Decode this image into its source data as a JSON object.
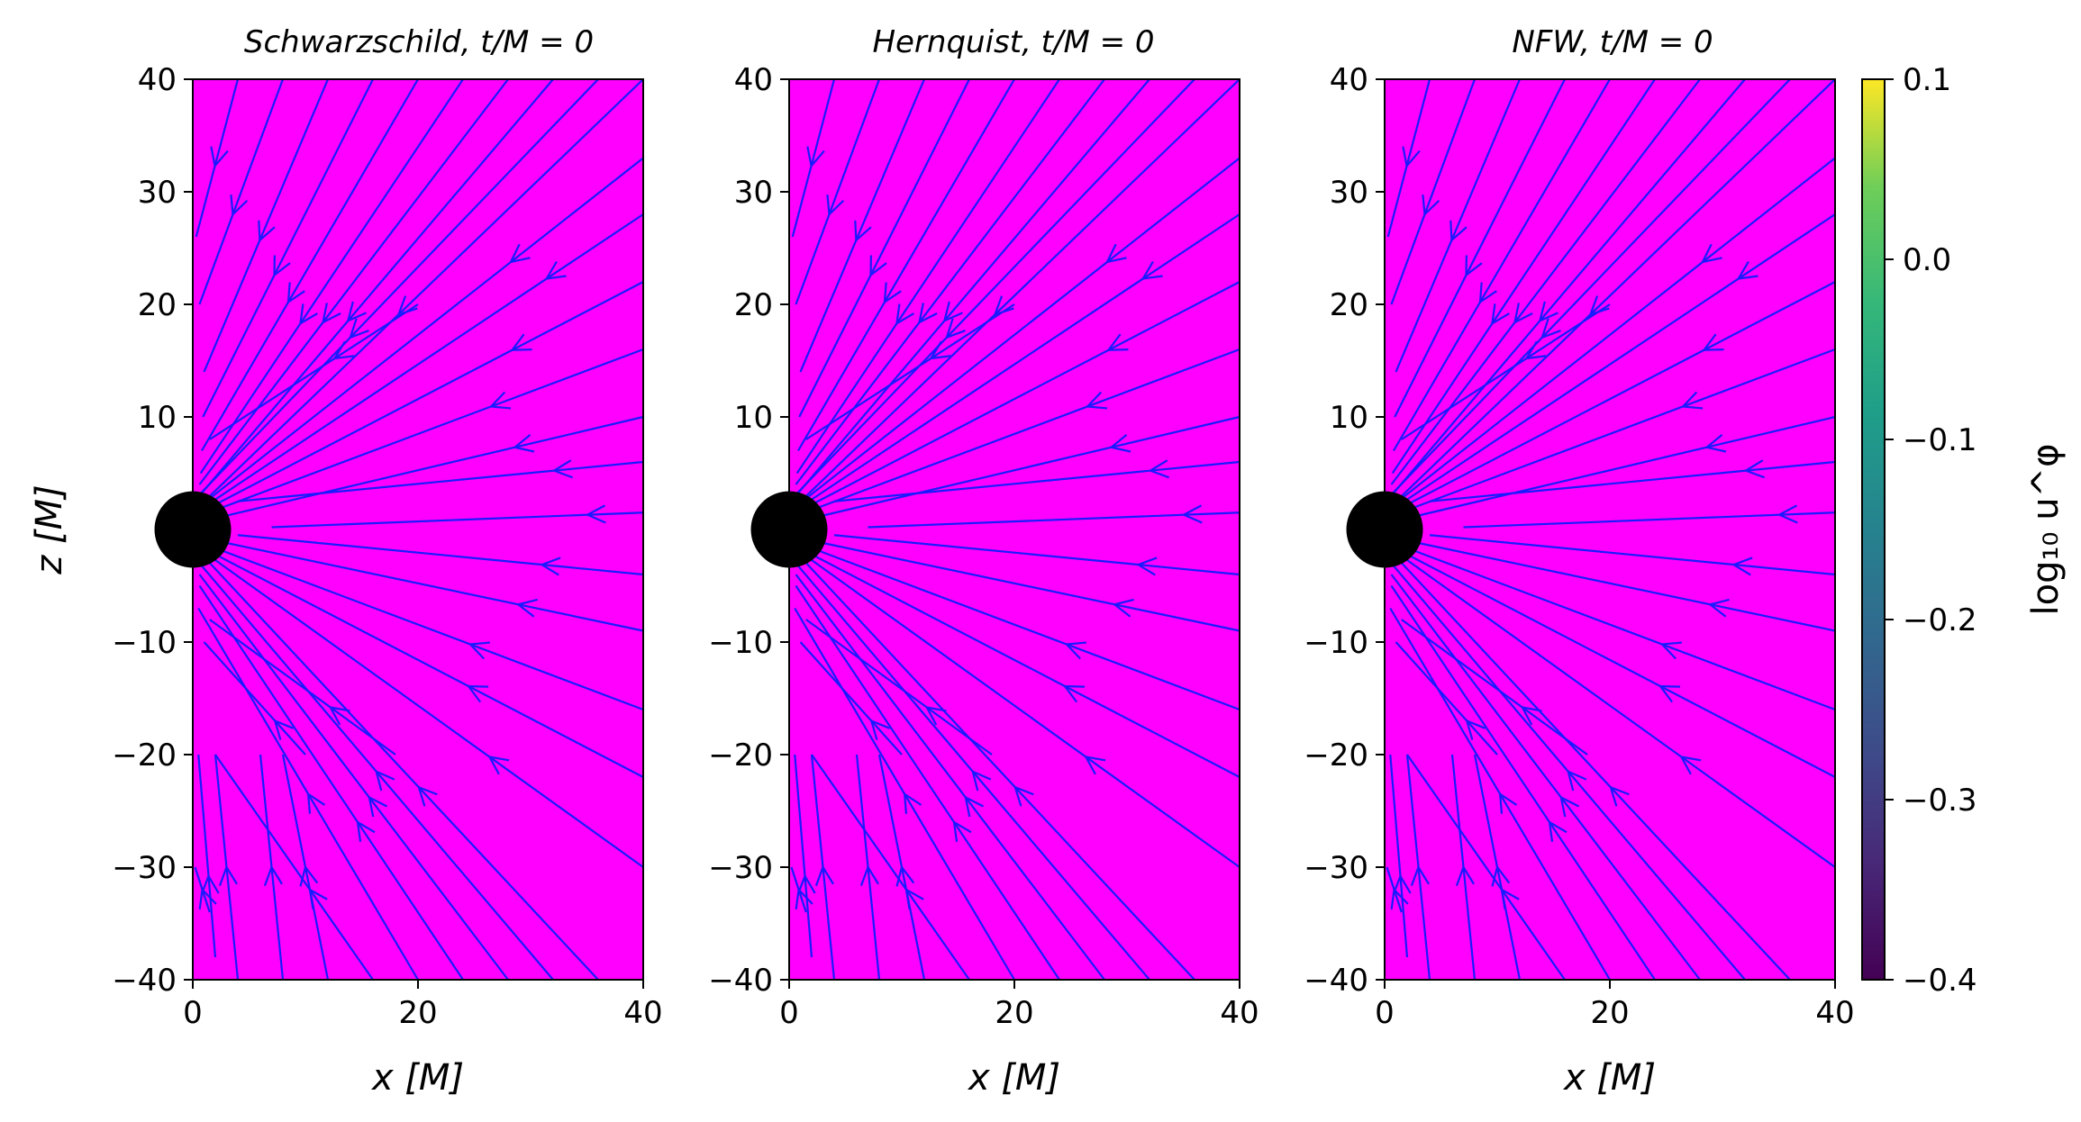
{
  "chart_data": [
    {
      "type": "streamplot",
      "title": "Schwarzschild, t/M = 0",
      "xlabel": "x [M]",
      "ylabel": "z [M]",
      "xlim": [
        0,
        40
      ],
      "ylim": [
        -40,
        40
      ],
      "xticks": [
        "0",
        "20",
        "40"
      ],
      "yticks": [
        "40",
        "30",
        "20",
        "10",
        "0",
        "−10",
        "−20",
        "−30",
        "−40"
      ],
      "background_color": "#ff00ff",
      "stream_color": "#1a1aff",
      "black_hole_radius": 2
    },
    {
      "type": "streamplot",
      "title": "Hernquist, t/M = 0",
      "xlabel": "x [M]",
      "ylabel": "",
      "xlim": [
        0,
        40
      ],
      "ylim": [
        -40,
        40
      ],
      "xticks": [
        "0",
        "20",
        "40"
      ],
      "yticks": [
        "40",
        "30",
        "20",
        "10",
        "0",
        "−10",
        "−20",
        "−30",
        "−40"
      ],
      "background_color": "#ff00ff",
      "stream_color": "#1a1aff",
      "black_hole_radius": 2
    },
    {
      "type": "streamplot",
      "title": "NFW, t/M = 0",
      "xlabel": "x [M]",
      "ylabel": "",
      "xlim": [
        0,
        40
      ],
      "ylim": [
        -40,
        40
      ],
      "xticks": [
        "0",
        "20",
        "40"
      ],
      "yticks": [
        "40",
        "30",
        "20",
        "10",
        "0",
        "−10",
        "−20",
        "−30",
        "−40"
      ],
      "background_color": "#ff00ff",
      "stream_color": "#1a1aff",
      "black_hole_radius": 2
    }
  ],
  "colorbar": {
    "label": "log₁₀ u^φ",
    "range": [
      -0.4,
      0.1
    ],
    "ticks": [
      "0.1",
      "0.0",
      "−0.1",
      "−0.2",
      "−0.3",
      "−0.4"
    ],
    "colormap": "viridis"
  }
}
